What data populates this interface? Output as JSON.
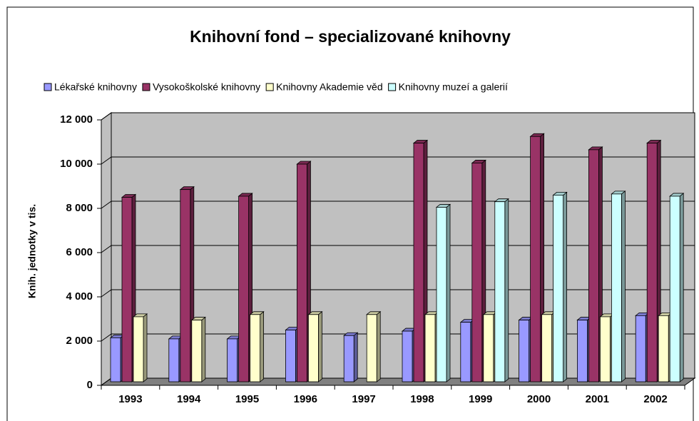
{
  "chart_data": {
    "type": "bar3d",
    "title": "Knihovní fond – specializované knihovny",
    "y_label": "Knih. jednotky v tis.",
    "categories": [
      "1993",
      "1994",
      "1995",
      "1996",
      "1997",
      "1998",
      "1999",
      "2000",
      "2001",
      "2002"
    ],
    "series": [
      {
        "name": "Lékařské knihovny",
        "color": "#9999ff",
        "values": [
          2150,
          2100,
          2100,
          2500,
          2250,
          2450,
          2850,
          2950,
          2950,
          3150
        ]
      },
      {
        "name": "Vysokoškolské knihovny",
        "color": "#993366",
        "values": [
          8500,
          8850,
          8550,
          10000,
          null,
          10950,
          10050,
          11250,
          10650,
          10950
        ]
      },
      {
        "name": "Knihovny Akademie věd",
        "color": "#ffffcc",
        "values": [
          3100,
          2950,
          3200,
          3200,
          3200,
          3200,
          3200,
          3200,
          3100,
          3150
        ]
      },
      {
        "name": "Knihovny muzeí a galerií",
        "color": "#ccffff",
        "values": [
          null,
          null,
          null,
          null,
          null,
          8050,
          8300,
          8600,
          8650,
          8550
        ]
      }
    ],
    "ylim": [
      0,
      12000
    ],
    "yticks": [
      0,
      {
        "value": 2000,
        "label": "2 000"
      },
      {
        "value": 4000,
        "label": "4 000"
      },
      {
        "value": 6000,
        "label": "6 000"
      },
      {
        "value": 8000,
        "label": "8 000"
      },
      {
        "value": 10000,
        "label": "10 000"
      },
      {
        "value": 12000,
        "label": "12 000"
      }
    ],
    "grid": true
  }
}
